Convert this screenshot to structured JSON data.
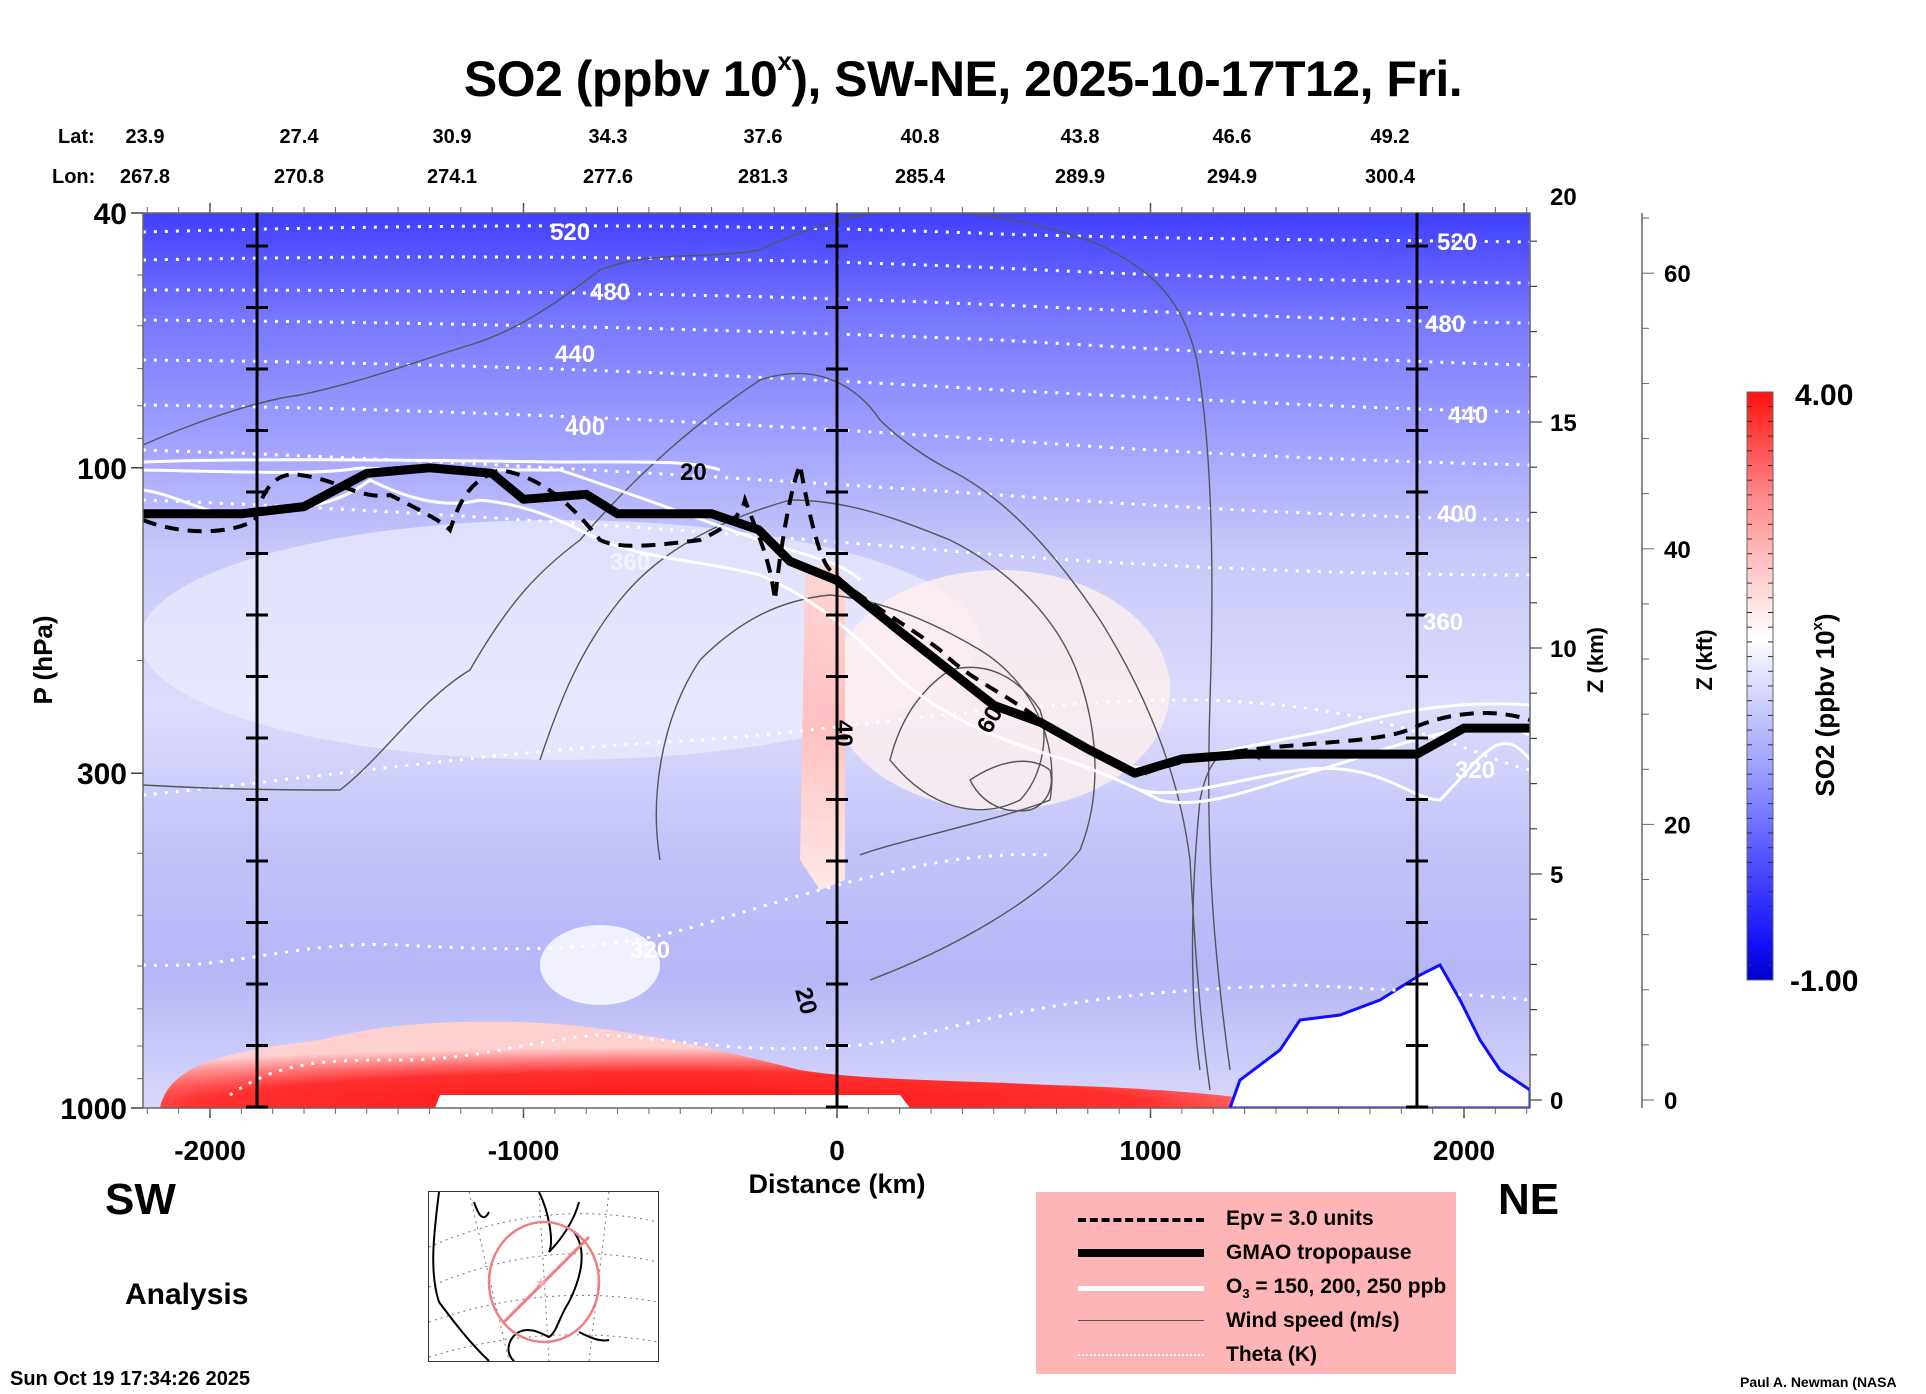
{
  "chart_data": {
    "type": "heatmap",
    "title": "SO2 (ppbv 10",
    "title_superscript": "x",
    "title_suffix": "), SW-NE, 2025-10-17T12, Fri.",
    "xlabel": "Distance (km)",
    "ylabel": "P (hPa)",
    "y2label": "Z (km)",
    "y3label": "Z (kft)",
    "xlim": [
      -2250,
      2250
    ],
    "ylim_hpa": [
      1000,
      40
    ],
    "y_scale": "log",
    "x_ticks": [
      -2000,
      -1000,
      0,
      1000,
      2000
    ],
    "y_ticks_hpa": [
      40,
      100,
      300,
      1000
    ],
    "z_km_ticks": [
      0,
      5,
      10,
      15,
      20
    ],
    "z_kft_ticks": [
      0,
      20,
      40,
      60
    ],
    "vertical_reference_lines_km": [
      -1850,
      0,
      1850
    ],
    "lat_label": "Lat:",
    "lon_label": "Lon:",
    "lat": [
      "23.9",
      "27.4",
      "30.9",
      "34.3",
      "37.6",
      "40.8",
      "43.8",
      "46.6",
      "49.2"
    ],
    "lon": [
      "267.8",
      "270.8",
      "274.1",
      "277.6",
      "281.3",
      "285.4",
      "289.9",
      "294.9",
      "300.4"
    ],
    "colorbar": {
      "label": "SO2 (ppbv 10",
      "label_superscript": "x",
      "label_suffix": ")",
      "min_label": "-1.00",
      "max_label": "4.00",
      "min": -1.0,
      "max": 4.0,
      "colors": [
        "#0000c8",
        "#1a1aff",
        "#6b6bff",
        "#a8a8ff",
        "#dcdcff",
        "#ffffff",
        "#ffd8d8",
        "#ffa0a0",
        "#ff6060",
        "#ff1a1a"
      ]
    },
    "theta_contours_K": [
      {
        "value": 520,
        "label": "520"
      },
      {
        "value": 480,
        "label": "480"
      },
      {
        "value": 440,
        "label": "440"
      },
      {
        "value": 400,
        "label": "400"
      },
      {
        "value": 360,
        "label": "360"
      },
      {
        "value": 320,
        "label": "320"
      }
    ],
    "wind_speed_labels": [
      "20",
      "40",
      "60",
      "20"
    ],
    "tropopause_hpa": [
      [
        -2250,
        118
      ],
      [
        -1900,
        118
      ],
      [
        -1700,
        115
      ],
      [
        -1500,
        102
      ],
      [
        -1300,
        100
      ],
      [
        -1100,
        102
      ],
      [
        -1000,
        112
      ],
      [
        -800,
        110
      ],
      [
        -700,
        118
      ],
      [
        -400,
        118
      ],
      [
        -250,
        125
      ],
      [
        -150,
        140
      ],
      [
        0,
        150
      ],
      [
        200,
        180
      ],
      [
        400,
        215
      ],
      [
        500,
        235
      ],
      [
        650,
        250
      ],
      [
        800,
        275
      ],
      [
        950,
        300
      ],
      [
        1100,
        285
      ],
      [
        1300,
        280
      ],
      [
        1500,
        280
      ],
      [
        1850,
        280
      ],
      [
        2000,
        255
      ],
      [
        2250,
        255
      ]
    ],
    "regions": [
      {
        "name": "surface SO2 maximum",
        "x_range_km": [
          -2100,
          0
        ],
        "p_range_hpa": [
          700,
          1000
        ],
        "value_range": [
          3.0,
          4.0
        ]
      },
      {
        "name": "tropopause fold SO2 plume",
        "x_range_km": [
          -100,
          100
        ],
        "p_range_hpa": [
          150,
          420
        ],
        "value_range": [
          1.5,
          2.0
        ]
      }
    ]
  },
  "labels": {
    "sw": "SW",
    "ne": "NE",
    "analysis": "Analysis",
    "timestamp": "Sun Oct 19 17:34:26 2025",
    "credit": "Paul A. Newman (NASA"
  },
  "legend": [
    {
      "name": "epv",
      "text": "Epv = 3.0 units"
    },
    {
      "name": "tropopause",
      "text": "GMAO tropopause"
    },
    {
      "name": "ozone",
      "text_main": "O",
      "text_sub": "3",
      "text_rest": " = 150, 200, 250 ppb"
    },
    {
      "name": "wind",
      "text": "Wind speed (m/s)"
    },
    {
      "name": "theta",
      "text": "Theta (K)"
    }
  ],
  "colors": {
    "legend_bg": "#ffb5b5",
    "map_circle": "#f08080"
  }
}
